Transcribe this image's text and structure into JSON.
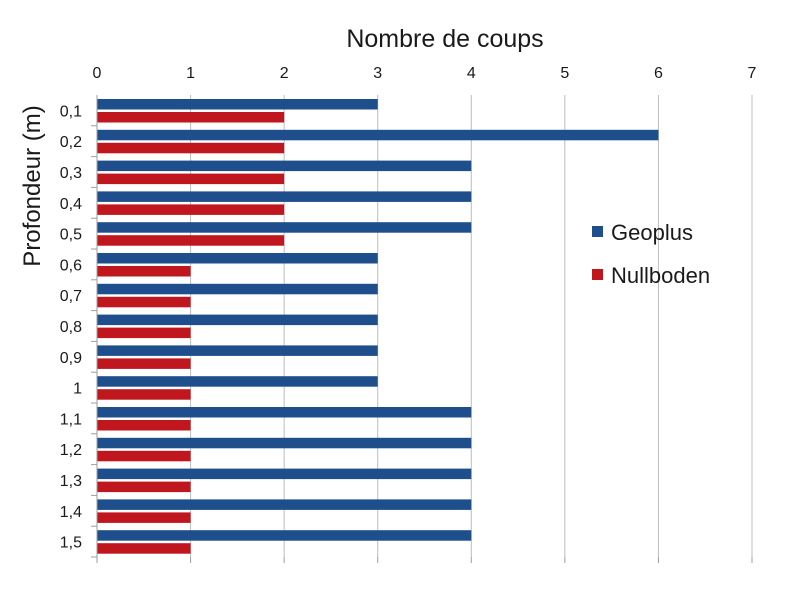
{
  "chart_data": {
    "type": "bar",
    "orientation": "horizontal",
    "title": "",
    "xlabel": "Nombre de coups",
    "ylabel": "Profondeur (m)",
    "categories": [
      "0,1",
      "0,2",
      "0,3",
      "0,4",
      "0,5",
      "0,6",
      "0,7",
      "0,8",
      "0,9",
      "1",
      "1,1",
      "1,2",
      "1,3",
      "1,4",
      "1,5"
    ],
    "xlim": [
      0,
      7
    ],
    "x_ticks": [
      "0",
      "1",
      "2",
      "3",
      "4",
      "5",
      "6",
      "7"
    ],
    "x_axis_position": "top",
    "grid": true,
    "legend_position": "right",
    "series": [
      {
        "name": "Geoplus",
        "color": "#1f4e8c",
        "values": [
          3,
          6,
          4,
          4,
          4,
          3,
          3,
          3,
          3,
          3,
          4,
          4,
          4,
          4,
          4
        ]
      },
      {
        "name": "Nullboden",
        "color": "#c0161d",
        "values": [
          2,
          2,
          2,
          2,
          2,
          1,
          1,
          1,
          1,
          1,
          1,
          1,
          1,
          1,
          1
        ]
      }
    ]
  }
}
